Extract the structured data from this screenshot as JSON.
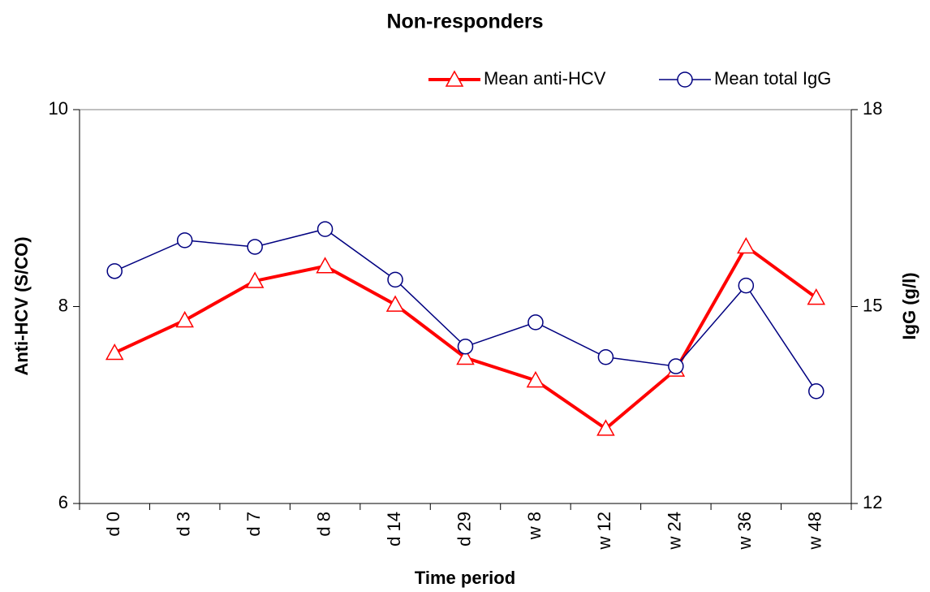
{
  "chart_data": {
    "type": "line",
    "title": "Non-responders",
    "xlabel": "Time period",
    "ylabel": "Anti-HCV (S/CO)",
    "y2label": "IgG (g/l)",
    "categories": [
      "d 0",
      "d 3",
      "d 7",
      "d 8",
      "d 14",
      "d 29",
      "w 8",
      "w 12",
      "w 24",
      "w 36",
      "w 48"
    ],
    "series": [
      {
        "name": "Mean anti-HCV",
        "color": "#ff0000",
        "marker": "triangle",
        "axis": "y",
        "values": [
          7.53,
          7.86,
          8.26,
          8.41,
          8.02,
          7.48,
          7.25,
          6.76,
          7.36,
          8.61,
          8.09
        ]
      },
      {
        "name": "Mean total IgG",
        "color": "#000080",
        "marker": "circle",
        "axis": "y2",
        "values": [
          15.54,
          16.01,
          15.91,
          16.18,
          15.41,
          14.39,
          14.76,
          14.23,
          14.09,
          15.32,
          13.71
        ]
      }
    ],
    "ylim": [
      6,
      10
    ],
    "yticks": [
      6,
      8,
      10
    ],
    "y2lim": [
      12,
      18
    ],
    "y2ticks": [
      12,
      15,
      18
    ],
    "grid": false,
    "legend": "top-right"
  }
}
